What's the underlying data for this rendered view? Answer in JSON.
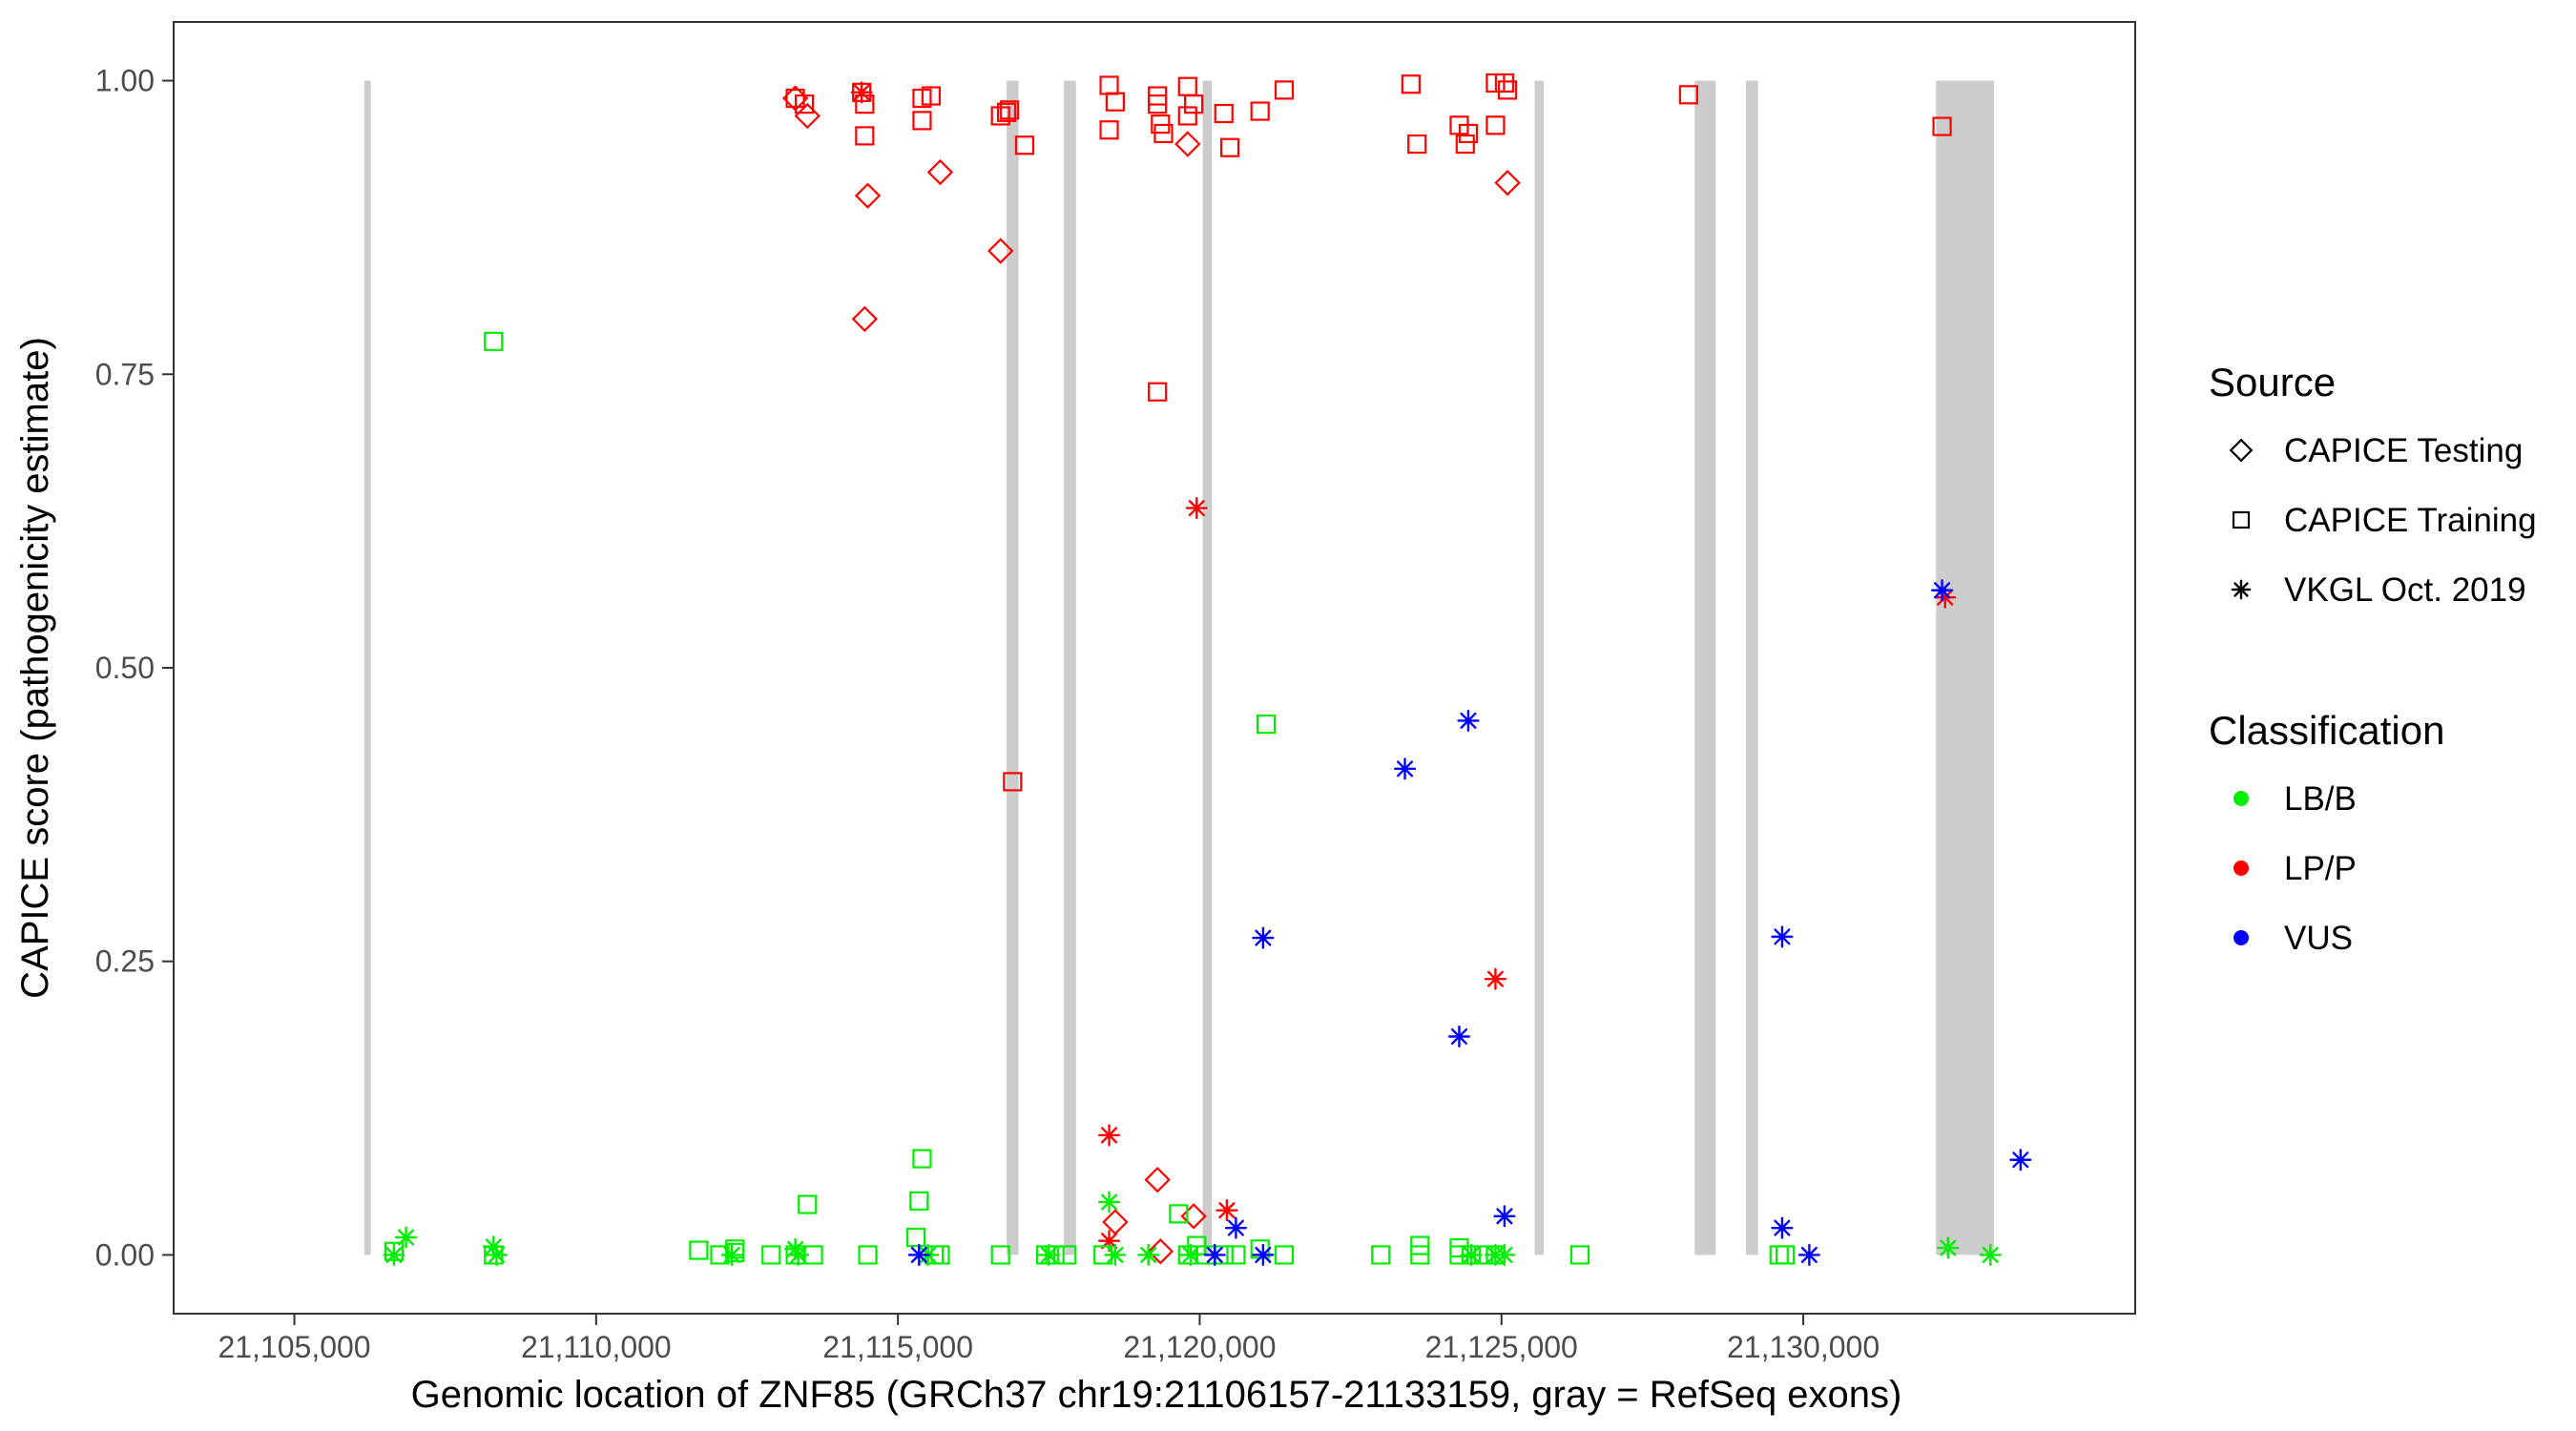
{
  "chart_data": {
    "type": "scatter",
    "title": "",
    "xlabel": "Genomic location of ZNF85 (GRCh37 chr19:21106157-21133159, gray = RefSeq exons)",
    "ylabel": "CAPICE score (pathogenicity estimate)",
    "xlim": [
      21103000,
      21135500
    ],
    "ylim": [
      -0.05,
      1.05
    ],
    "x_ticks": [
      21105000,
      21110000,
      21115000,
      21120000,
      21125000,
      21130000
    ],
    "x_tick_labels": [
      "21,105,000",
      "21,110,000",
      "21,115,000",
      "21,120,000",
      "21,125,000",
      "21,130,000"
    ],
    "y_ticks": [
      0,
      0.25,
      0.5,
      0.75,
      1
    ],
    "y_tick_labels": [
      "0.00",
      "0.25",
      "0.50",
      "0.75",
      "1.00"
    ],
    "grid": false,
    "legend_position": "right",
    "exons": [
      [
        21106157,
        21106250
      ],
      [
        21116800,
        21117000
      ],
      [
        21117750,
        21117950
      ],
      [
        21120050,
        21120200
      ],
      [
        21125550,
        21125700
      ],
      [
        21128200,
        21128550
      ],
      [
        21129050,
        21129250
      ],
      [
        21132200,
        21133159
      ]
    ],
    "legend": {
      "source_title": "Source",
      "source_items": [
        {
          "label": "CAPICE Testing",
          "shape": "diamond"
        },
        {
          "label": "CAPICE Training",
          "shape": "square"
        },
        {
          "label": "VKGL Oct. 2019",
          "shape": "asterisk"
        }
      ],
      "class_title": "Classification",
      "class_items": [
        {
          "label": "LB/B",
          "color": "#00ee00"
        },
        {
          "label": "LP/P",
          "color": "#ff0000"
        },
        {
          "label": "VUS",
          "color": "#0000ff"
        }
      ]
    },
    "colors": {
      "LB/B": "#00ee00",
      "LP/P": "#ff0000",
      "VUS": "#0000ff",
      "exon": "#cccccc"
    },
    "series": [
      {
        "source": "CAPICE Training",
        "classification": "LP/P",
        "shape": "square",
        "color": "#ff0000",
        "points": [
          [
            21113300,
            0.985
          ],
          [
            21113450,
            0.98
          ],
          [
            21114400,
            0.99
          ],
          [
            21114450,
            0.98
          ],
          [
            21114450,
            0.953
          ],
          [
            21115400,
            0.985
          ],
          [
            21115550,
            0.987
          ],
          [
            21115400,
            0.966
          ],
          [
            21116700,
            0.97
          ],
          [
            21116850,
            0.975
          ],
          [
            21116800,
            0.973
          ],
          [
            21117100,
            0.945
          ],
          [
            21118500,
            0.996
          ],
          [
            21118600,
            0.982
          ],
          [
            21118500,
            0.958
          ],
          [
            21119300,
            0.987
          ],
          [
            21119300,
            0.98
          ],
          [
            21119350,
            0.963
          ],
          [
            21119400,
            0.955
          ],
          [
            21119800,
            0.995
          ],
          [
            21119900,
            0.98
          ],
          [
            21119800,
            0.97
          ],
          [
            21120400,
            0.972
          ],
          [
            21120500,
            0.943
          ],
          [
            21121000,
            0.974
          ],
          [
            21121400,
            0.992
          ],
          [
            21123500,
            0.997
          ],
          [
            21123600,
            0.946
          ],
          [
            21124300,
            0.962
          ],
          [
            21124400,
            0.946
          ],
          [
            21124450,
            0.955
          ],
          [
            21124900,
            0.998
          ],
          [
            21125050,
            0.998
          ],
          [
            21125100,
            0.992
          ],
          [
            21124900,
            0.962
          ],
          [
            21128100,
            0.988
          ],
          [
            21132300,
            0.961
          ],
          [
            21119300,
            0.735
          ],
          [
            21116900,
            0.403
          ]
        ]
      },
      {
        "source": "CAPICE Testing",
        "classification": "LP/P",
        "shape": "diamond",
        "color": "#ff0000",
        "points": [
          [
            21113300,
            0.985
          ],
          [
            21113500,
            0.97
          ],
          [
            21114500,
            0.902
          ],
          [
            21114450,
            0.797
          ],
          [
            21115700,
            0.922
          ],
          [
            21116700,
            0.855
          ],
          [
            21119800,
            0.946
          ],
          [
            21125100,
            0.913
          ],
          [
            21118600,
            0.028
          ],
          [
            21119300,
            0.064
          ],
          [
            21119350,
            0.003
          ],
          [
            21119900,
            0.033
          ]
        ]
      },
      {
        "source": "VKGL Oct. 2019",
        "classification": "LP/P",
        "shape": "asterisk",
        "color": "#ff0000",
        "points": [
          [
            21114400,
            0.99
          ],
          [
            21119950,
            0.636
          ],
          [
            21118500,
            0.102
          ],
          [
            21118500,
            0.012
          ],
          [
            21120450,
            0.038
          ],
          [
            21124900,
            0.235
          ],
          [
            21132350,
            0.56
          ]
        ]
      },
      {
        "source": "CAPICE Training",
        "classification": "LB/B",
        "shape": "square",
        "color": "#00ee00",
        "points": [
          [
            21106650,
            0.003
          ],
          [
            21108300,
            0.778
          ],
          [
            21108300,
            0.0
          ],
          [
            21111700,
            0.004
          ],
          [
            21112050,
            0.0
          ],
          [
            21112300,
            0.002
          ],
          [
            21112300,
            0.005
          ],
          [
            21112900,
            0.0
          ],
          [
            21113300,
            0.0
          ],
          [
            21113500,
            0.043
          ],
          [
            21113600,
            0.0
          ],
          [
            21114500,
            0.0
          ],
          [
            21115400,
            0.082
          ],
          [
            21115350,
            0.046
          ],
          [
            21115300,
            0.015
          ],
          [
            21115600,
            0.0
          ],
          [
            21115700,
            0.0
          ],
          [
            21116700,
            0.0
          ],
          [
            21117450,
            0.0
          ],
          [
            21117600,
            0.0
          ],
          [
            21117800,
            0.0
          ],
          [
            21118400,
            0.0
          ],
          [
            21119650,
            0.035
          ],
          [
            21119800,
            0.0
          ],
          [
            21119950,
            0.008
          ],
          [
            21120100,
            0.0
          ],
          [
            21120400,
            0.0
          ],
          [
            21120600,
            0.0
          ],
          [
            21121000,
            0.005
          ],
          [
            21121100,
            0.452
          ],
          [
            21121400,
            0.0
          ],
          [
            21123000,
            0.0
          ],
          [
            21123650,
            0.0
          ],
          [
            21123650,
            0.008
          ],
          [
            21124300,
            0.0
          ],
          [
            21124300,
            0.006
          ],
          [
            21124500,
            0.0
          ],
          [
            21124700,
            0.0
          ],
          [
            21124900,
            0.0
          ],
          [
            21126300,
            0.0
          ],
          [
            21129600,
            0.0
          ],
          [
            21129700,
            0.0
          ]
        ]
      },
      {
        "source": "VKGL Oct. 2019",
        "classification": "LB/B",
        "shape": "asterisk",
        "color": "#00ee00",
        "points": [
          [
            21106650,
            0.0
          ],
          [
            21106850,
            0.015
          ],
          [
            21108300,
            0.007
          ],
          [
            21108350,
            0.0
          ],
          [
            21112250,
            0.0
          ],
          [
            21113300,
            0.005
          ],
          [
            21113350,
            0.0
          ],
          [
            21115500,
            0.0
          ],
          [
            21117500,
            0.0
          ],
          [
            21118500,
            0.045
          ],
          [
            21118600,
            0.0
          ],
          [
            21119150,
            0.0
          ],
          [
            21119850,
            0.0
          ],
          [
            21124500,
            0.0
          ],
          [
            21124900,
            0.0
          ],
          [
            21125050,
            0.0
          ],
          [
            21132400,
            0.006
          ],
          [
            21133100,
            0.0
          ]
        ]
      },
      {
        "source": "VKGL Oct. 2019",
        "classification": "VUS",
        "shape": "asterisk",
        "color": "#0000ff",
        "points": [
          [
            21115350,
            0.0
          ],
          [
            21120250,
            0.0
          ],
          [
            21120600,
            0.023
          ],
          [
            21121050,
            0.0
          ],
          [
            21121050,
            0.27
          ],
          [
            21123400,
            0.414
          ],
          [
            21124300,
            0.186
          ],
          [
            21124450,
            0.455
          ],
          [
            21125050,
            0.033
          ],
          [
            21129650,
            0.271
          ],
          [
            21129650,
            0.023
          ],
          [
            21130100,
            0.0
          ],
          [
            21132300,
            0.566
          ],
          [
            21133600,
            0.081
          ]
        ]
      }
    ]
  }
}
